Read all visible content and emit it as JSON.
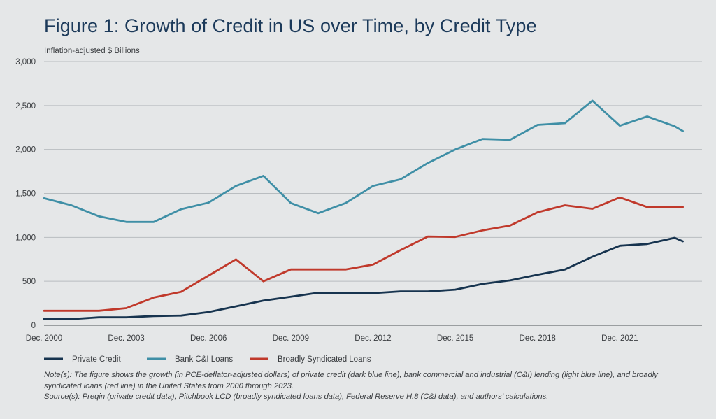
{
  "title": "Figure 1: Growth of Credit in US over Time, by Credit Type",
  "notes": [
    "Note(s): The figure shows the growth (in PCE-deflator-adjusted dollars) of private credit (dark blue line), bank commercial and industrial (C&I) lending (light blue line), and broadly syndicated loans (red line) in the United States from 2000 through 2023.",
    "Source(s): Preqin (private credit data), Pitchbook LCD (broadly syndicated loans data), Federal Reserve H.8 (C&I data), and authors’ calculations."
  ],
  "chart_data": {
    "type": "line",
    "title": "Figure 1: Growth of Credit in US over Time, by Credit Type",
    "ylabel": "Inflation-adjusted $ Billions",
    "xlabel": "",
    "ylim": [
      0,
      3000
    ],
    "yticks": [
      0,
      500,
      1000,
      1500,
      2000,
      2500,
      3000
    ],
    "ytick_labels": [
      "0",
      "500",
      "1,000",
      "1,500",
      "2,000",
      "2,500",
      "3,000"
    ],
    "xlim": [
      2000,
      2024
    ],
    "xticks": [
      2000,
      2003,
      2006,
      2009,
      2012,
      2015,
      2018,
      2021
    ],
    "xtick_labels": [
      "Dec. 2000",
      "Dec. 2003",
      "Dec. 2006",
      "Dec. 2009",
      "Dec. 2012",
      "Dec. 2015",
      "Dec. 2018",
      "Dec. 2021"
    ],
    "grid": "horizontal",
    "legend_position": "bottom-left",
    "series": [
      {
        "name": "Private Credit",
        "color": "#17344f",
        "x": [
          2000,
          2001,
          2002,
          2003,
          2004,
          2005,
          2006,
          2007,
          2008,
          2009,
          2010,
          2011,
          2012,
          2013,
          2014,
          2015,
          2016,
          2017,
          2018,
          2019,
          2020,
          2021,
          2022,
          2023,
          2023.3
        ],
        "y": [
          70,
          70,
          90,
          90,
          105,
          110,
          150,
          215,
          280,
          325,
          370,
          368,
          365,
          385,
          385,
          405,
          470,
          510,
          575,
          635,
          780,
          905,
          925,
          995,
          955
        ]
      },
      {
        "name": "Bank C&I Loans",
        "color": "#3f8fa6",
        "x": [
          2000,
          2001,
          2002,
          2003,
          2004,
          2005,
          2006,
          2007,
          2008,
          2009,
          2010,
          2011,
          2012,
          2013,
          2014,
          2015,
          2016,
          2017,
          2018,
          2019,
          2020,
          2021,
          2022,
          2023,
          2023.3
        ],
        "y": [
          1445,
          1365,
          1240,
          1175,
          1175,
          1320,
          1395,
          1585,
          1700,
          1390,
          1275,
          1390,
          1585,
          1660,
          1845,
          2000,
          2120,
          2110,
          2280,
          2300,
          2555,
          2270,
          2375,
          2265,
          2210
        ]
      },
      {
        "name": "Broadly Syndicated Loans",
        "color": "#c0392b",
        "x": [
          2000,
          2001,
          2002,
          2003,
          2004,
          2005,
          2006,
          2007,
          2008,
          2009,
          2010,
          2011,
          2012,
          2013,
          2014,
          2015,
          2016,
          2017,
          2018,
          2019,
          2020,
          2021,
          2022,
          2023,
          2023.3
        ],
        "y": [
          165,
          165,
          165,
          195,
          315,
          380,
          565,
          750,
          500,
          635,
          635,
          635,
          690,
          855,
          1010,
          1005,
          1080,
          1135,
          1285,
          1365,
          1325,
          1455,
          1345,
          1345,
          1345
        ]
      }
    ]
  }
}
